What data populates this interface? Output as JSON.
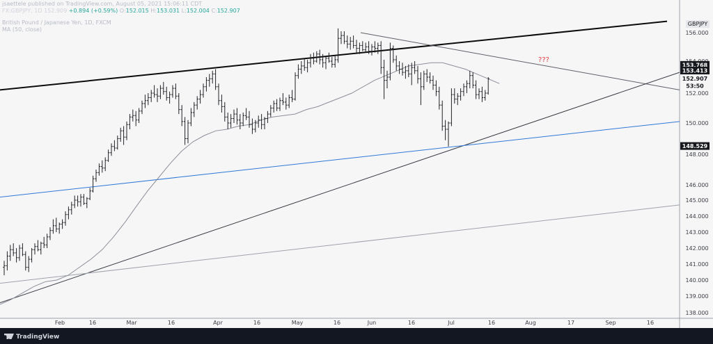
{
  "header": {
    "publisher_line": "jsaettele published on TradingView.com, August 05, 2021 15:06:11 CDT",
    "symbol": "FX:GBPJPY, 1D",
    "last": "152.909",
    "change": "+0.894 (+0.59%)",
    "open_label": "O:",
    "open": "152.015",
    "high_label": "H:",
    "high": "153.031",
    "low_label": "L:",
    "low": "152.004",
    "close_label": "C:",
    "close": "152.907",
    "instrument": "British Pound / Japanese Yen, 1D, FXCM",
    "indicator": "MA (50, close)"
  },
  "footer": {
    "brand": "TradingView"
  },
  "colors": {
    "background": "#131722",
    "bar": "#d1d4dc",
    "ma": "#8c8f99",
    "trendline_bold": "#0b0b0b",
    "trendline_blue": "#2e78d6",
    "annotation_red": "#e83e3e",
    "up": "#26a69a"
  },
  "chart_data": {
    "type": "ohlc",
    "ylim": [
      137.8,
      157.0
    ],
    "y_ticks": [
      138.0,
      139.0,
      140.0,
      141.0,
      142.0,
      143.0,
      144.0,
      145.0,
      146.0,
      148.0,
      150.0,
      152.0,
      154.0,
      156.0
    ],
    "x_ticks": [
      "Feb",
      "16",
      "Mar",
      "16",
      "Apr",
      "16",
      "May",
      "16",
      "Jun",
      "16",
      "Jul",
      "16",
      "Aug",
      "17",
      "Sep",
      "16"
    ],
    "symbol_badge": "GBPJPY",
    "price_labels": [
      {
        "text": "153.768",
        "value": 153.768,
        "style": "dark"
      },
      {
        "text": "153.413",
        "value": 153.413,
        "style": "dark"
      },
      {
        "text": "152.907",
        "value": 152.907,
        "style": "light"
      },
      {
        "text": "53:50",
        "value": 152.45,
        "style": "light"
      },
      {
        "text": "148.529",
        "value": 148.529,
        "style": "dark"
      }
    ],
    "annotations": [
      {
        "text": "???",
        "color": "red"
      }
    ],
    "series": [
      {
        "name": "GBPJPY daily",
        "type": "ohlc",
        "values": [
          [
            140.8,
            141.2,
            140.3,
            140.9
          ],
          [
            140.9,
            141.8,
            140.6,
            141.5
          ],
          [
            141.5,
            142.2,
            141.2,
            141.9
          ],
          [
            141.9,
            142.3,
            141.5,
            141.7
          ],
          [
            141.7,
            142.0,
            141.1,
            141.4
          ],
          [
            141.4,
            142.2,
            141.2,
            142.0
          ],
          [
            142.0,
            142.3,
            141.5,
            141.6
          ],
          [
            141.6,
            141.8,
            140.6,
            140.8
          ],
          [
            140.8,
            141.5,
            140.5,
            141.3
          ],
          [
            141.3,
            142.0,
            141.1,
            141.9
          ],
          [
            141.9,
            142.3,
            141.6,
            142.1
          ],
          [
            142.1,
            142.5,
            141.8,
            141.9
          ],
          [
            141.9,
            142.4,
            141.6,
            142.3
          ],
          [
            142.3,
            142.7,
            142.0,
            142.2
          ],
          [
            142.2,
            142.9,
            142.0,
            142.7
          ],
          [
            142.7,
            143.3,
            142.5,
            143.1
          ],
          [
            143.1,
            143.8,
            142.9,
            143.4
          ],
          [
            143.4,
            143.9,
            143.0,
            143.2
          ],
          [
            143.2,
            143.6,
            142.9,
            143.5
          ],
          [
            143.5,
            143.8,
            143.2,
            143.6
          ],
          [
            143.6,
            144.3,
            143.4,
            144.1
          ],
          [
            144.1,
            144.6,
            143.8,
            144.4
          ],
          [
            144.4,
            144.9,
            144.1,
            144.7
          ],
          [
            144.7,
            145.3,
            144.5,
            145.0
          ],
          [
            145.0,
            145.3,
            144.6,
            144.9
          ],
          [
            144.9,
            145.4,
            144.6,
            145.2
          ],
          [
            145.2,
            145.4,
            144.7,
            144.8
          ],
          [
            144.8,
            145.2,
            144.5,
            145.1
          ],
          [
            145.1,
            145.8,
            145.0,
            145.6
          ],
          [
            145.6,
            146.6,
            145.5,
            146.4
          ],
          [
            146.4,
            147.0,
            146.2,
            146.8
          ],
          [
            146.8,
            147.4,
            146.6,
            147.2
          ],
          [
            147.2,
            147.6,
            146.8,
            147.1
          ],
          [
            147.1,
            147.8,
            146.9,
            147.6
          ],
          [
            147.6,
            148.3,
            147.5,
            148.1
          ],
          [
            148.1,
            148.7,
            147.9,
            148.5
          ],
          [
            148.5,
            148.9,
            148.2,
            148.4
          ],
          [
            148.4,
            149.2,
            148.3,
            149.0
          ],
          [
            149.0,
            149.7,
            148.8,
            149.5
          ],
          [
            149.5,
            149.8,
            148.6,
            149.1
          ],
          [
            149.1,
            150.1,
            148.9,
            149.9
          ],
          [
            149.9,
            150.6,
            149.6,
            150.4
          ],
          [
            150.4,
            150.9,
            150.1,
            150.5
          ],
          [
            150.5,
            150.8,
            149.8,
            150.2
          ],
          [
            150.2,
            151.0,
            150.0,
            150.8
          ],
          [
            150.8,
            151.5,
            150.6,
            151.3
          ],
          [
            151.3,
            151.9,
            151.0,
            151.5
          ],
          [
            151.5,
            152.0,
            151.2,
            151.7
          ],
          [
            151.7,
            152.2,
            151.4,
            152.0
          ],
          [
            152.0,
            152.5,
            151.7,
            151.9
          ],
          [
            151.9,
            152.3,
            151.4,
            151.8
          ],
          [
            151.8,
            152.5,
            151.6,
            152.3
          ],
          [
            152.3,
            152.7,
            151.9,
            152.1
          ],
          [
            152.1,
            152.4,
            151.5,
            151.7
          ],
          [
            151.7,
            152.1,
            151.3,
            151.9
          ],
          [
            151.9,
            152.5,
            151.7,
            152.3
          ],
          [
            152.3,
            152.6,
            151.6,
            151.8
          ],
          [
            151.8,
            152.0,
            150.6,
            150.9
          ],
          [
            150.9,
            151.2,
            149.8,
            150.1
          ],
          [
            150.1,
            150.4,
            148.6,
            149.0
          ],
          [
            149.0,
            150.2,
            148.7,
            150.0
          ],
          [
            150.0,
            151.0,
            149.8,
            150.7
          ],
          [
            150.7,
            151.4,
            150.4,
            151.2
          ],
          [
            151.2,
            151.8,
            150.9,
            151.6
          ],
          [
            151.6,
            152.2,
            151.3,
            151.9
          ],
          [
            151.9,
            152.6,
            151.7,
            152.4
          ],
          [
            152.4,
            153.0,
            152.1,
            152.8
          ],
          [
            152.8,
            153.2,
            152.4,
            152.9
          ],
          [
            152.9,
            153.4,
            152.6,
            153.2
          ],
          [
            153.2,
            153.5,
            152.2,
            152.4
          ],
          [
            152.4,
            152.6,
            151.2,
            151.5
          ],
          [
            151.5,
            151.9,
            150.7,
            151.1
          ],
          [
            151.1,
            151.4,
            150.1,
            150.4
          ],
          [
            150.4,
            150.7,
            149.6,
            150.0
          ],
          [
            150.0,
            150.6,
            149.7,
            150.3
          ],
          [
            150.3,
            150.9,
            150.0,
            150.6
          ],
          [
            150.6,
            151.0,
            149.9,
            150.2
          ],
          [
            150.2,
            150.6,
            149.6,
            150.0
          ],
          [
            150.0,
            150.7,
            149.8,
            150.5
          ],
          [
            150.5,
            151.0,
            150.2,
            150.4
          ],
          [
            150.4,
            150.8,
            149.7,
            149.9
          ],
          [
            149.9,
            150.3,
            149.3,
            149.6
          ],
          [
            149.6,
            150.2,
            149.4,
            150.0
          ],
          [
            150.0,
            150.5,
            149.7,
            150.2
          ],
          [
            150.2,
            150.6,
            149.6,
            149.9
          ],
          [
            149.9,
            150.4,
            149.6,
            150.3
          ],
          [
            150.3,
            150.8,
            150.0,
            150.6
          ],
          [
            150.6,
            151.2,
            150.4,
            151.0
          ],
          [
            151.0,
            151.5,
            150.7,
            151.3
          ],
          [
            151.3,
            151.6,
            150.8,
            151.0
          ],
          [
            151.0,
            151.7,
            150.8,
            151.5
          ],
          [
            151.5,
            152.0,
            151.2,
            151.4
          ],
          [
            151.4,
            151.7,
            150.9,
            151.2
          ],
          [
            151.2,
            151.9,
            151.0,
            151.7
          ],
          [
            151.7,
            152.2,
            151.4,
            151.6
          ],
          [
            151.6,
            153.3,
            151.5,
            153.1
          ],
          [
            153.1,
            153.8,
            152.9,
            153.5
          ],
          [
            153.5,
            154.0,
            153.2,
            153.7
          ],
          [
            153.7,
            154.2,
            153.4,
            153.6
          ],
          [
            153.6,
            154.1,
            153.3,
            153.9
          ],
          [
            153.9,
            154.5,
            153.6,
            154.2
          ],
          [
            154.2,
            154.6,
            153.8,
            154.0
          ],
          [
            154.0,
            154.7,
            153.9,
            154.5
          ],
          [
            154.5,
            154.8,
            153.8,
            154.1
          ],
          [
            154.1,
            154.5,
            153.6,
            153.9
          ],
          [
            153.9,
            154.3,
            153.5,
            154.2
          ],
          [
            154.2,
            154.6,
            153.9,
            154.0
          ],
          [
            154.0,
            154.3,
            153.6,
            153.8
          ],
          [
            153.8,
            154.4,
            153.6,
            154.1
          ],
          [
            154.1,
            156.3,
            153.9,
            155.6
          ],
          [
            155.6,
            156.1,
            155.2,
            155.8
          ],
          [
            155.8,
            156.1,
            155.2,
            155.4
          ],
          [
            155.4,
            155.8,
            154.9,
            155.2
          ],
          [
            155.2,
            155.7,
            154.8,
            155.4
          ],
          [
            155.4,
            155.8,
            154.9,
            155.1
          ],
          [
            155.1,
            155.5,
            154.6,
            154.9
          ],
          [
            154.9,
            155.3,
            154.5,
            155.1
          ],
          [
            155.1,
            155.4,
            154.7,
            154.8
          ],
          [
            154.8,
            155.3,
            154.6,
            155.0
          ],
          [
            155.0,
            155.4,
            154.5,
            154.7
          ],
          [
            154.7,
            155.2,
            154.4,
            155.0
          ],
          [
            155.0,
            155.4,
            154.6,
            154.9
          ],
          [
            154.9,
            155.3,
            154.5,
            155.1
          ],
          [
            155.1,
            155.4,
            153.2,
            153.6
          ],
          [
            153.6,
            154.1,
            151.6,
            152.8
          ],
          [
            152.8,
            153.4,
            152.3,
            153.0
          ],
          [
            153.0,
            155.3,
            152.8,
            154.9
          ],
          [
            154.9,
            155.1,
            153.9,
            154.1
          ],
          [
            154.1,
            154.4,
            153.4,
            153.7
          ],
          [
            153.7,
            154.0,
            153.2,
            153.5
          ],
          [
            153.5,
            153.9,
            153.1,
            153.3
          ],
          [
            153.3,
            153.7,
            152.9,
            153.4
          ],
          [
            153.4,
            153.8,
            153.0,
            153.2
          ],
          [
            153.2,
            153.9,
            152.5,
            153.6
          ],
          [
            153.6,
            154.0,
            153.2,
            153.4
          ],
          [
            153.4,
            153.7,
            152.6,
            152.9
          ],
          [
            152.9,
            153.3,
            151.2,
            152.4
          ],
          [
            152.4,
            153.4,
            152.2,
            153.2
          ],
          [
            153.2,
            153.5,
            152.7,
            153.0
          ],
          [
            153.0,
            153.3,
            152.6,
            152.8
          ],
          [
            152.8,
            153.1,
            152.2,
            152.5
          ],
          [
            152.5,
            152.8,
            151.8,
            152.1
          ],
          [
            152.1,
            152.4,
            150.9,
            151.2
          ],
          [
            151.2,
            151.5,
            149.5,
            149.8
          ],
          [
            149.8,
            150.2,
            148.9,
            149.6
          ],
          [
            149.6,
            150.1,
            148.5,
            150.0
          ],
          [
            150.0,
            152.3,
            149.8,
            151.9
          ],
          [
            151.9,
            152.3,
            151.3,
            151.6
          ],
          [
            151.6,
            152.0,
            151.2,
            151.8
          ],
          [
            151.8,
            152.3,
            151.5,
            152.1
          ],
          [
            152.1,
            152.6,
            151.8,
            152.4
          ],
          [
            152.4,
            152.8,
            152.0,
            152.6
          ],
          [
            152.6,
            153.4,
            152.3,
            153.1
          ],
          [
            153.1,
            153.3,
            152.3,
            152.5
          ],
          [
            152.5,
            152.8,
            151.6,
            151.9
          ],
          [
            151.9,
            152.3,
            151.6,
            152.1
          ],
          [
            152.1,
            152.4,
            151.4,
            151.7
          ],
          [
            151.7,
            152.2,
            151.5,
            152.0
          ],
          [
            152.0,
            153.0,
            151.9,
            152.9
          ]
        ]
      },
      {
        "name": "MA (50, close)",
        "type": "line",
        "values": [
          138.5,
          138.8,
          139.2,
          139.6,
          139.9,
          140.0,
          140.3,
          140.8,
          141.3,
          141.9,
          142.7,
          143.6,
          144.6,
          145.6,
          146.5,
          147.4,
          148.2,
          148.8,
          149.2,
          149.5,
          149.6,
          149.8,
          149.9,
          150.2,
          150.4,
          150.5,
          150.6,
          150.9,
          151.1,
          151.4,
          151.7,
          152.0,
          152.4,
          152.8,
          153.1,
          153.4,
          153.7,
          153.8,
          153.9,
          153.9,
          153.7,
          153.5,
          153.2,
          152.9,
          152.6
        ]
      },
      {
        "name": "trendline-upper",
        "type": "line",
        "values": [
          152.2,
          156.8
        ]
      },
      {
        "name": "trendline-descending",
        "type": "line",
        "values": [
          156.0,
          152.2
        ]
      },
      {
        "name": "trendline-steep",
        "type": "line",
        "values": [
          138.6,
          153.3
        ]
      },
      {
        "name": "trendline-blue",
        "type": "line",
        "values": [
          145.2,
          150.1
        ]
      },
      {
        "name": "trendline-lower",
        "type": "line",
        "values": [
          139.8,
          144.7
        ]
      },
      {
        "name": "resistance-153.768",
        "type": "level",
        "values": [
          153.768
        ]
      },
      {
        "name": "resistance-153.413",
        "type": "level",
        "values": [
          153.413
        ]
      },
      {
        "name": "support-148.529",
        "type": "level",
        "values": [
          148.529
        ]
      }
    ]
  }
}
